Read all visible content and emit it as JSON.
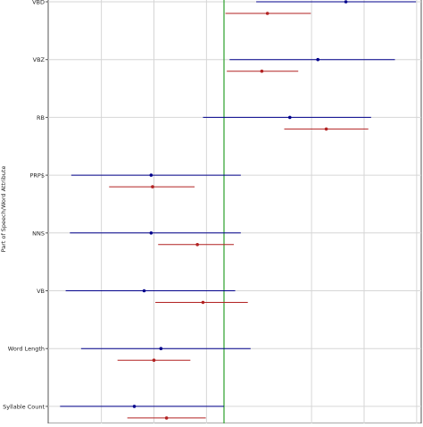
{
  "chart_data": {
    "type": "scatter",
    "title": "",
    "xlabel": "",
    "ylabel": "Part of Speech/Word Attribute",
    "xlim": [
      -1.45,
      1.45
    ],
    "reference_line": {
      "x": 0,
      "color": "#2ca02c"
    },
    "grid": true,
    "categories": [
      "VBD",
      "VBZ",
      "RB",
      "PRP$",
      "NNS",
      "VB",
      "Word Length",
      "Syllable Count"
    ],
    "series": [
      {
        "color": "#00008b",
        "points": [
          {
            "category": "VBD",
            "estimate": 0.87,
            "low": 0.23,
            "high": 1.37
          },
          {
            "category": "VBZ",
            "estimate": 0.67,
            "low": 0.04,
            "high": 1.22
          },
          {
            "category": "RB",
            "estimate": 0.47,
            "low": -0.15,
            "high": 1.05
          },
          {
            "category": "PRP$",
            "estimate": -0.52,
            "low": -1.09,
            "high": 0.12
          },
          {
            "category": "NNS",
            "estimate": -0.52,
            "low": -1.1,
            "high": 0.12
          },
          {
            "category": "VB",
            "estimate": -0.57,
            "low": -1.13,
            "high": 0.08
          },
          {
            "category": "Word Length",
            "estimate": -0.45,
            "low": -1.02,
            "high": 0.19
          },
          {
            "category": "Syllable Count",
            "estimate": -0.64,
            "low": -1.17,
            "high": 0.0
          }
        ]
      },
      {
        "color": "#b22222",
        "points": [
          {
            "category": "VBD",
            "estimate": 0.31,
            "low": 0.01,
            "high": 0.62
          },
          {
            "category": "VBZ",
            "estimate": 0.27,
            "low": 0.02,
            "high": 0.53
          },
          {
            "category": "RB",
            "estimate": 0.73,
            "low": 0.43,
            "high": 1.03
          },
          {
            "category": "PRP$",
            "estimate": -0.51,
            "low": -0.82,
            "high": -0.21
          },
          {
            "category": "NNS",
            "estimate": -0.19,
            "low": -0.47,
            "high": 0.07
          },
          {
            "category": "VB",
            "estimate": -0.15,
            "low": -0.49,
            "high": 0.17
          },
          {
            "category": "Word Length",
            "estimate": -0.5,
            "low": -0.76,
            "high": -0.24
          },
          {
            "category": "Syllable Count",
            "estimate": -0.41,
            "low": -0.69,
            "high": -0.13
          }
        ]
      }
    ]
  }
}
